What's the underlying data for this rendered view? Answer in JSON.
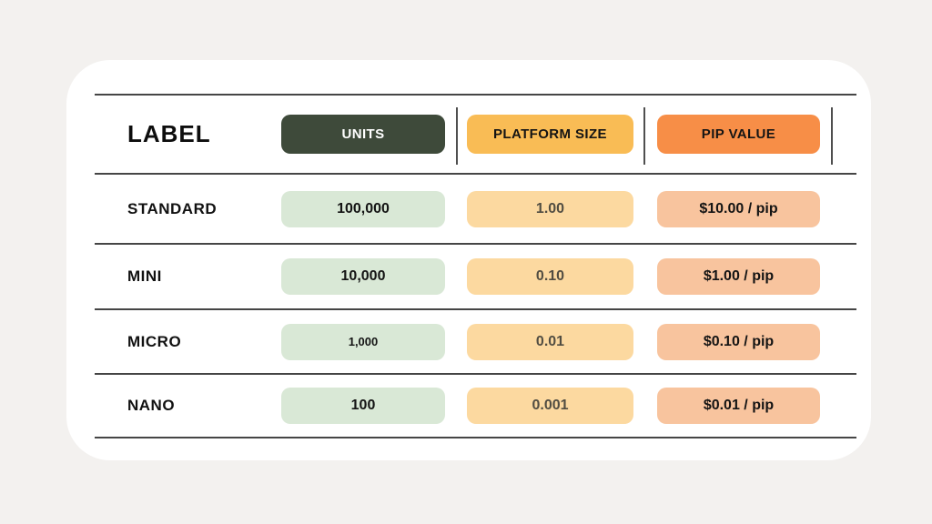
{
  "colors": {
    "page_background": "#f3f1ef",
    "card_background": "#ffffff",
    "divider_line": "#454545",
    "header_units_bg": "#3e4a3a",
    "header_units_text": "#ffffff",
    "header_platform_bg": "#f9bc55",
    "header_pip_bg": "#f78e47",
    "cell_units_bg": "#d9e8d6",
    "cell_platform_bg": "#fcd9a0",
    "cell_platform_text": "#514d42",
    "cell_pip_bg": "#f8c49e"
  },
  "table": {
    "header": {
      "label": "LABEL",
      "units": "UNITS",
      "platform_size": "PLATFORM SIZE",
      "pip_value": "PIP VALUE"
    },
    "rows": [
      {
        "label": "STANDARD",
        "units": "100,000",
        "platform_size": "1.00",
        "pip_value": "$10.00 / pip"
      },
      {
        "label": "MINI",
        "units": "10,000",
        "platform_size": "0.10",
        "pip_value": "$1.00 / pip"
      },
      {
        "label": "MICRO",
        "units": "1,000",
        "platform_size": "0.01",
        "pip_value": "$0.10 / pip"
      },
      {
        "label": "NANO",
        "units": "100",
        "platform_size": "0.001",
        "pip_value": "$0.01 / pip"
      }
    ]
  },
  "chart_data": {
    "type": "table",
    "columns": [
      "LABEL",
      "UNITS",
      "PLATFORM SIZE",
      "PIP VALUE"
    ],
    "rows": [
      [
        "STANDARD",
        "100,000",
        "1.00",
        "$10.00 / pip"
      ],
      [
        "MINI",
        "10,000",
        "0.10",
        "$1.00 / pip"
      ],
      [
        "MICRO",
        "1,000",
        "0.01",
        "$0.10 / pip"
      ],
      [
        "NANO",
        "100",
        "0.001",
        "$0.01 / pip"
      ]
    ],
    "title": "",
    "notes": "Lot size table: label, units, platform size, pip value"
  }
}
